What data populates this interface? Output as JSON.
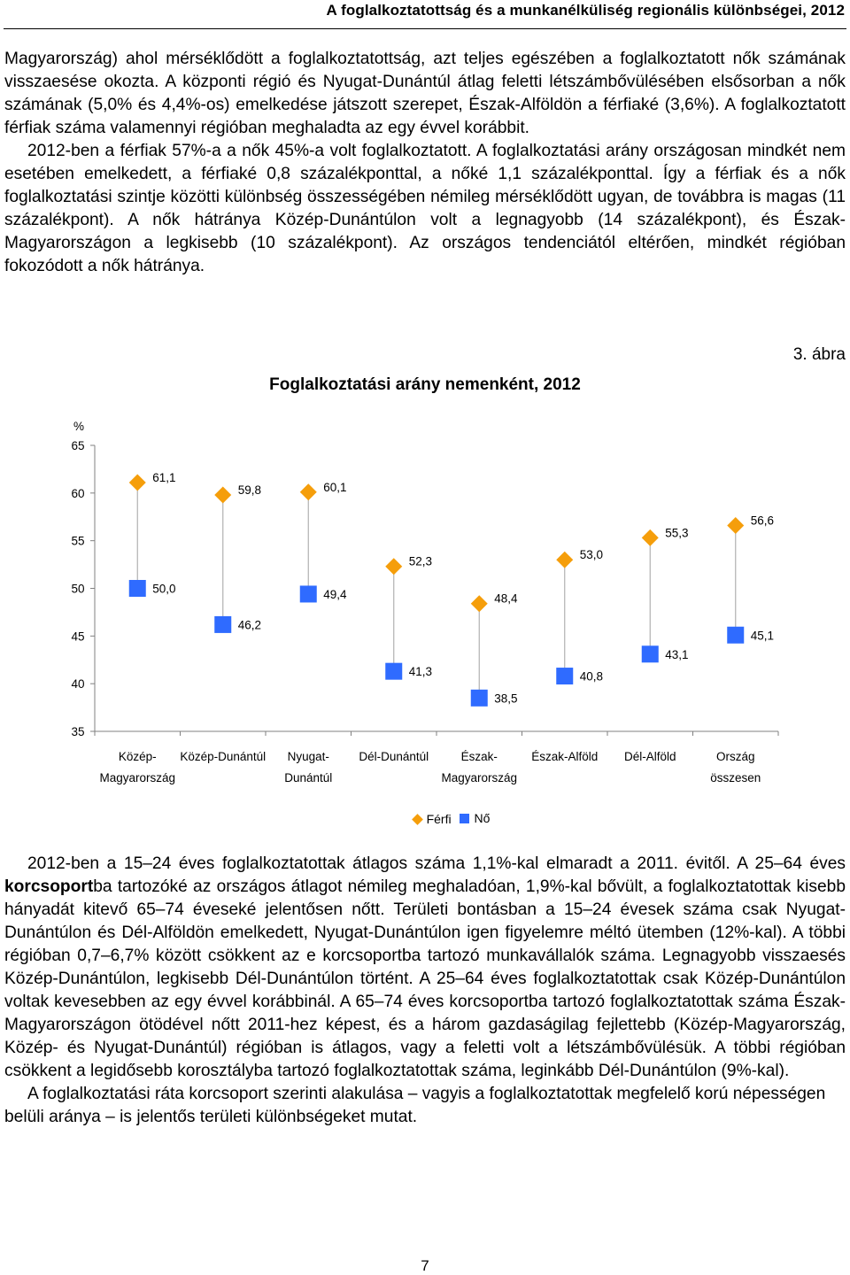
{
  "header": {
    "running_title": "A foglalkoztatottság és a munkanélküliség regionális különbségei, 2012"
  },
  "body_top": {
    "paragraphs": [
      "Magyarország) ahol mérséklődött a foglalkoztatottság, azt teljes egészében a foglalkoztatott nők számának visszaesése okozta. A központi régió és Nyugat-Dunántúl átlag feletti létszámbővülésében elsősorban a nők számának (5,0% és 4,4%-os) emelkedése játszott szerepet, Észak-Alföldön a férfiaké (3,6%). A foglalkoztatott férfiak száma valamennyi régióban meghaladta az egy évvel korábbit.",
      "2012-ben a férfiak 57%-a a nők 45%-a volt foglalkoztatott. A foglalkoztatási arány országosan mindkét nem esetében emelkedett, a férfiaké 0,8 százalékponttal, a nőké 1,1 százalékponttal. Így a férfiak és a nők foglalkoztatási szintje közötti különbség összességében némileg mérséklődött ugyan, de továbbra is magas (11 százalékpont). A nők hátránya Közép-Dunántúlon volt a legnagyobb (14 százalékpont), és Észak-Magyarországon a legkisebb (10 százalékpont). Az országos tendenciától eltérően, mindkét régióban fokozódott a nők hátránya."
    ]
  },
  "figure": {
    "number_label": "3. ábra",
    "title": "Foglalkoztatási arány nemenként, 2012"
  },
  "chart_data": {
    "type": "scatter",
    "title": "Foglalkoztatási arány nemenként, 2012",
    "ylabel": "%",
    "ylim": [
      35,
      65
    ],
    "yticks": [
      35,
      40,
      45,
      50,
      55,
      60,
      65
    ],
    "grid": false,
    "legend_position": "bottom",
    "categories": [
      [
        "Közép-",
        "Magyarország"
      ],
      [
        "Közép-Dunántúl"
      ],
      [
        "Nyugat-",
        "Dunántúl"
      ],
      [
        "Dél-Dunántúl"
      ],
      [
        "Észak-",
        "Magyarország"
      ],
      [
        "Észak-Alföld"
      ],
      [
        "Dél-Alföld"
      ],
      [
        "Ország",
        "összesen"
      ]
    ],
    "series": [
      {
        "name": "Férfi",
        "marker": "diamond",
        "color": "#f59e0b",
        "values": [
          61.1,
          59.8,
          60.1,
          52.3,
          48.4,
          53.0,
          55.3,
          56.6
        ],
        "labels": [
          "61,1",
          "59,8",
          "60,1",
          "52,3",
          "48,4",
          "53,0",
          "55,3",
          "56,6"
        ]
      },
      {
        "name": "Nő",
        "marker": "square",
        "color": "#2f6bff",
        "values": [
          50.0,
          46.2,
          49.4,
          41.3,
          38.5,
          40.8,
          43.1,
          45.1
        ],
        "labels": [
          "50,0",
          "46,2",
          "49,4",
          "41,3",
          "38,5",
          "40,8",
          "43,1",
          "45,1"
        ]
      }
    ]
  },
  "legend": {
    "men_label": "Férfi",
    "women_label": "Nő"
  },
  "body_bottom": {
    "p1_a": "2012-ben a 15–24 éves foglalkoztatottak átlagos száma 1,1%-kal elmaradt a 2011. évitől. A 25–64 éves ",
    "p1_bold": "korcsoport",
    "p1_b": "ba tartozóké az országos átlagot némileg meghaladóan, 1,9%-kal bővült, a foglalkoztatottak kisebb hányadát kitevő 65–74 éveseké jelentősen nőtt. Területi bontásban a 15–24 évesek száma csak Nyugat-Dunántúlon és Dél-Alföldön emelkedett, Nyugat-Dunántúlon igen figyelemre méltó ütemben (12%-kal). A többi régióban 0,7–6,7% között csökkent az e korcsoportba tartozó munkavállalók száma. Legnagyobb visszaesés Közép-Dunántúlon, legkisebb Dél-Dunántúlon történt. A 25–64 éves foglalkoztatottak csak Közép-Dunántúlon voltak kevesebben az egy évvel korábbinál. A 65–74 éves korcsoportba tartozó foglalkoztatottak száma Észak-Magyarországon ötödével nőtt 2011-hez képest, és a három gazdaságilag fejlettebb (Közép-Magyarország, Közép- és Nyugat-Dunántúl) régióban is átlagos, vagy a feletti volt a létszámbővülésük. A többi régióban csökkent a legidősebb korosztályba tartozó foglalkoztatottak száma, leginkább Dél-Dunántúlon (9%-kal).",
    "p2": "A foglalkoztatási ráta korcsoport szerinti alakulása – vagyis a foglalkoztatottak megfelelő korú népességen belüli aránya – is jelentős területi különbségeket mutat."
  },
  "footer": {
    "page_number": "7"
  }
}
